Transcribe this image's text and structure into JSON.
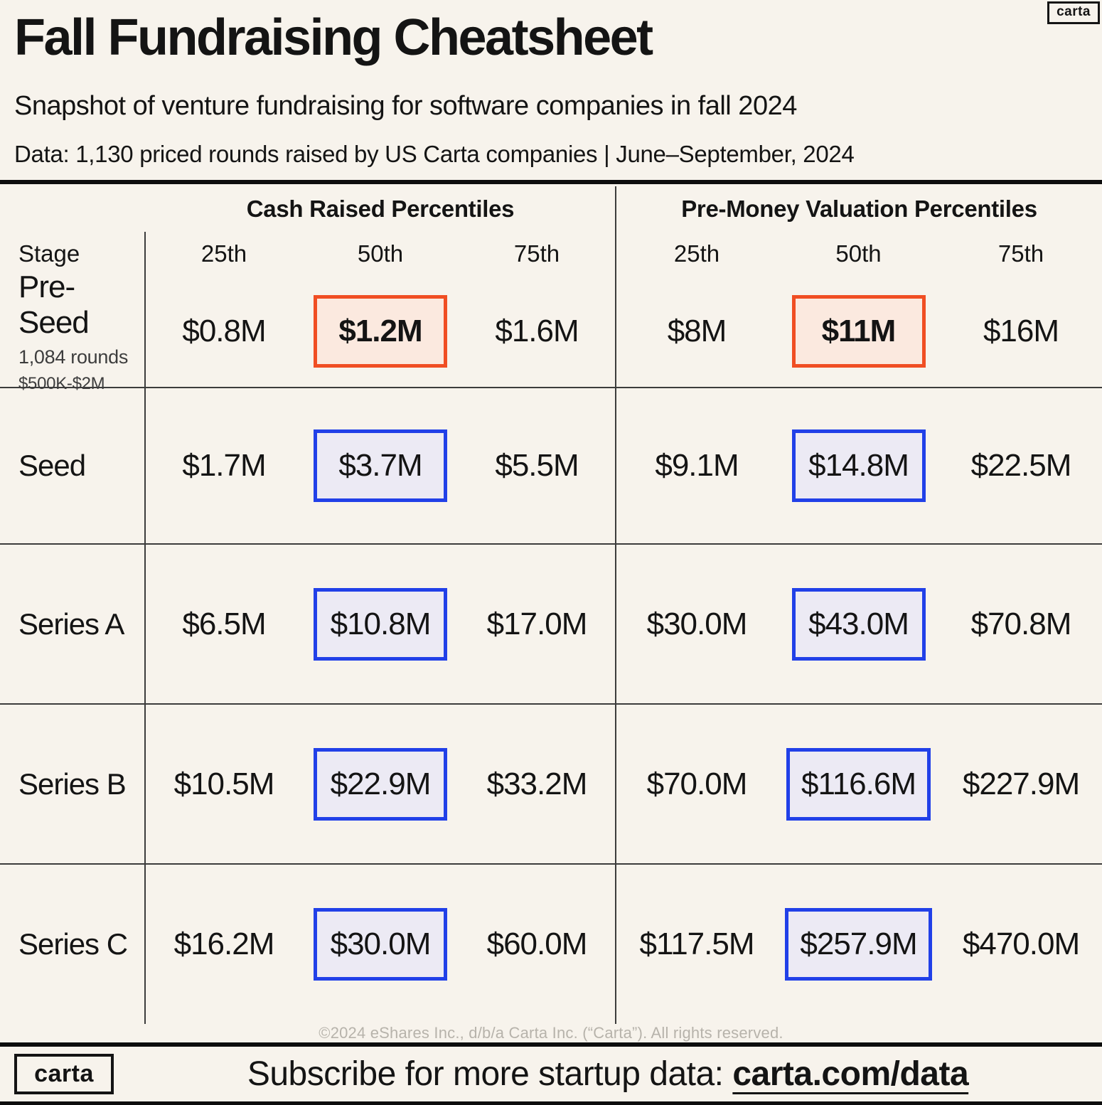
{
  "header": {
    "title": "Fall Fundraising Cheatsheet",
    "subtitle": "Snapshot of venture fundraising for software companies in fall 2024",
    "data_note": "Data: 1,130 priced rounds raised by US Carta companies | June–September, 2024",
    "brand_logo": "carta"
  },
  "table": {
    "stage_header": "Stage",
    "section_cash": "Cash Raised Percentiles",
    "section_valuation": "Pre-Money Valuation Percentiles",
    "col_25": "25th",
    "col_50": "50th",
    "col_75": "75th",
    "rows": [
      {
        "stage": "Pre-Seed",
        "note_rounds": "1,084 rounds",
        "note_range": "$500K-$2M",
        "highlight": "orange",
        "cash": [
          "$0.8M",
          "$1.2M",
          "$1.6M"
        ],
        "valuation": [
          "$8M",
          "$11M",
          "$16M"
        ]
      },
      {
        "stage": "Seed",
        "highlight": "blue",
        "cash": [
          "$1.7M",
          "$3.7M",
          "$5.5M"
        ],
        "valuation": [
          "$9.1M",
          "$14.8M",
          "$22.5M"
        ]
      },
      {
        "stage": "Series A",
        "highlight": "blue",
        "cash": [
          "$6.5M",
          "$10.8M",
          "$17.0M"
        ],
        "valuation": [
          "$30.0M",
          "$43.0M",
          "$70.8M"
        ]
      },
      {
        "stage": "Series B",
        "highlight": "blue",
        "cash": [
          "$10.5M",
          "$22.9M",
          "$33.2M"
        ],
        "valuation": [
          "$70.0M",
          "$116.6M",
          "$227.9M"
        ]
      },
      {
        "stage": "Series C",
        "highlight": "blue",
        "cash": [
          "$16.2M",
          "$30.0M",
          "$60.0M"
        ],
        "valuation": [
          "$117.5M",
          "$257.9M",
          "$470.0M"
        ]
      }
    ]
  },
  "footer": {
    "copyright": "©2024 eShares Inc., d/b/a Carta Inc. (“Carta”). All rights reserved.",
    "brand_logo": "carta",
    "subscribe_prefix": "Subscribe for more startup data: ",
    "subscribe_link": "carta.com/data"
  },
  "colors": {
    "background": "#f7f3ec",
    "text": "#141414",
    "grid_line": "#3c3c3c",
    "highlight_orange_border": "#f04e23",
    "highlight_orange_fill": "#fbe9df",
    "highlight_blue_border": "#2140e8",
    "highlight_blue_fill": "#eceaf4",
    "copyright_gray": "#b7b3ab"
  },
  "chart_data": {
    "type": "table",
    "title": "Fall Fundraising Cheatsheet",
    "subtitle": "Snapshot of venture fundraising for software companies in fall 2024",
    "source": "1,130 priced rounds raised by US Carta companies, June–September 2024",
    "unit": "USD millions",
    "column_groups": [
      "Cash Raised Percentiles",
      "Pre-Money Valuation Percentiles"
    ],
    "percentiles": [
      "25th",
      "50th",
      "75th"
    ],
    "rows": [
      {
        "stage": "Pre-Seed",
        "rounds": 1084,
        "round_size_range": "$500K-$2M",
        "cash_raised_M": [
          0.8,
          1.2,
          1.6
        ],
        "pre_money_valuation_M": [
          8,
          11,
          16
        ],
        "median_highlight": "orange"
      },
      {
        "stage": "Seed",
        "cash_raised_M": [
          1.7,
          3.7,
          5.5
        ],
        "pre_money_valuation_M": [
          9.1,
          14.8,
          22.5
        ],
        "median_highlight": "blue"
      },
      {
        "stage": "Series A",
        "cash_raised_M": [
          6.5,
          10.8,
          17.0
        ],
        "pre_money_valuation_M": [
          30.0,
          43.0,
          70.8
        ],
        "median_highlight": "blue"
      },
      {
        "stage": "Series B",
        "cash_raised_M": [
          10.5,
          22.9,
          33.2
        ],
        "pre_money_valuation_M": [
          70.0,
          116.6,
          227.9
        ],
        "median_highlight": "blue"
      },
      {
        "stage": "Series C",
        "cash_raised_M": [
          16.2,
          30.0,
          60.0
        ],
        "pre_money_valuation_M": [
          117.5,
          257.9,
          470.0
        ],
        "median_highlight": "blue"
      }
    ]
  }
}
